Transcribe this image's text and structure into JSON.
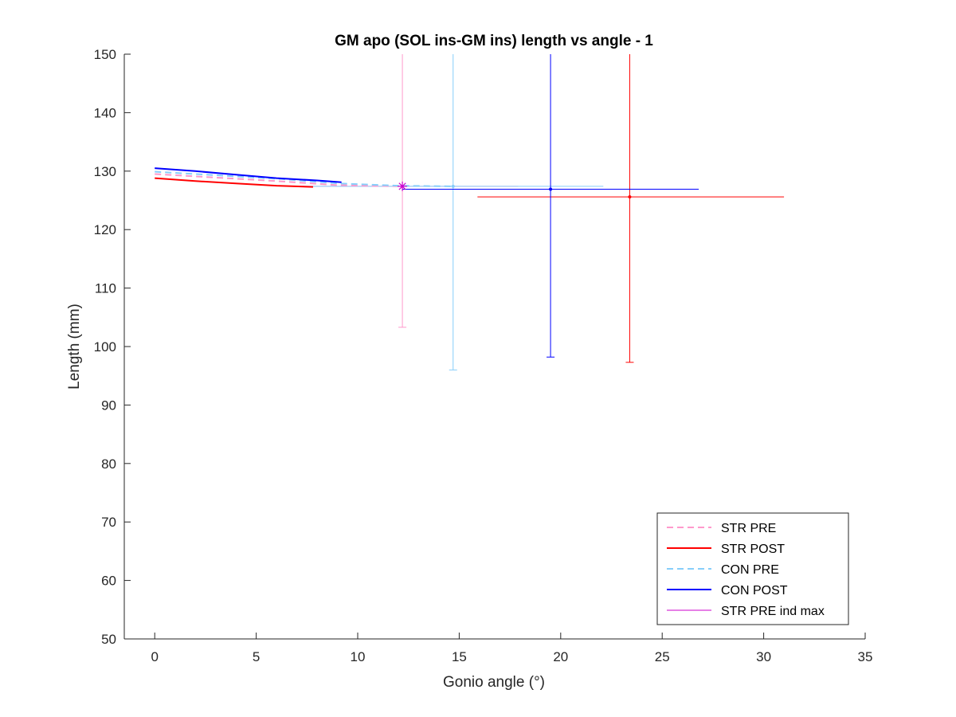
{
  "chart_data": {
    "type": "line",
    "title": "GM apo (SOL ins-GM ins) length vs angle - 1",
    "xlabel": "Gonio angle (°)",
    "ylabel": "Length (mm)",
    "xlim": [
      -1.5,
      35
    ],
    "ylim": [
      50,
      150
    ],
    "xticks": [
      0,
      5,
      10,
      15,
      20,
      25,
      30,
      35
    ],
    "yticks": [
      50,
      60,
      70,
      80,
      90,
      100,
      110,
      120,
      130,
      140,
      150
    ],
    "grid": false,
    "legend_position": "bottom-right",
    "series": [
      {
        "name": "STR PRE",
        "color": "#ff99cc",
        "style": "dashed",
        "x": [
          0,
          3,
          6,
          9,
          12.2
        ],
        "y": [
          129.5,
          128.9,
          128.3,
          127.6,
          127.4
        ],
        "mean_point": {
          "x": 12.2,
          "y": 127.4,
          "xerr": [
            7.3,
            17.9
          ],
          "yerr": [
            103.3,
            150
          ]
        }
      },
      {
        "name": "STR POST",
        "color": "#ff0000",
        "style": "solid",
        "x": [
          0,
          2,
          4,
          6,
          7.8
        ],
        "y": [
          128.8,
          128.3,
          127.9,
          127.5,
          127.3
        ],
        "mean_point": {
          "x": 23.4,
          "y": 125.6,
          "xerr": [
            15.9,
            31.0
          ],
          "yerr": [
            97.3,
            150
          ]
        }
      },
      {
        "name": "CON PRE",
        "color": "#87cefa",
        "style": "dashed",
        "x": [
          0,
          3,
          6,
          9,
          12,
          14.7
        ],
        "y": [
          129.9,
          129.3,
          128.7,
          127.9,
          127.5,
          127.4
        ],
        "mean_point": {
          "x": 14.7,
          "y": 127.4,
          "xerr": [
            7.3,
            22.1
          ],
          "yerr": [
            96.0,
            150
          ]
        }
      },
      {
        "name": "CON POST",
        "color": "#0000ff",
        "style": "solid",
        "x": [
          0,
          2,
          4,
          6,
          8,
          9.2
        ],
        "y": [
          130.5,
          130.0,
          129.4,
          128.8,
          128.4,
          128.1
        ],
        "mean_point": {
          "x": 19.5,
          "y": 126.9,
          "xerr": [
            12.2,
            26.8
          ],
          "yerr": [
            98.2,
            150
          ]
        }
      },
      {
        "name": "STR PRE ind max",
        "color": "#cc00cc",
        "style": "solid",
        "x": [],
        "y": [],
        "marker": {
          "x": 12.2,
          "y": 127.4,
          "symbol": "asterisk"
        }
      }
    ]
  }
}
